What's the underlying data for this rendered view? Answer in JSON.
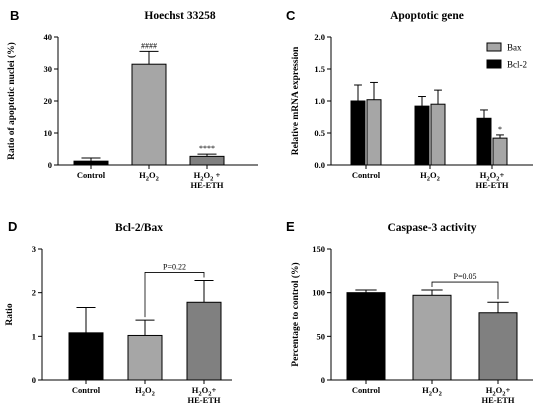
{
  "chart_data": [
    {
      "panel": "B",
      "type": "bar",
      "title": "Hoechst 33258",
      "ylabel": "Ratio of apoptotic nuclei (%)",
      "ylim": [
        0,
        40
      ],
      "yticks": [
        "0",
        "10",
        "20",
        "30",
        "40"
      ],
      "categories": [
        {
          "main": "Control",
          "sub": ""
        },
        {
          "main": "H2O2",
          "sub": ""
        },
        {
          "main": "H2O2 +",
          "sub": "HE-ETH"
        }
      ],
      "values": [
        1.2,
        31.5,
        2.7
      ],
      "errors": [
        1.0,
        4.0,
        0.7
      ],
      "colors": [
        "#000000",
        "#a6a6a6",
        "#808080"
      ],
      "significance": [
        "",
        "####",
        "****"
      ]
    },
    {
      "panel": "C",
      "type": "bar",
      "title": "Apoptotic gene",
      "ylabel": "Relative mRNA expression",
      "ylim": [
        0,
        2.0
      ],
      "yticks": [
        "0.0",
        "0.5",
        "1.0",
        "1.5",
        "2.0"
      ],
      "categories": [
        {
          "main": "Control",
          "sub": ""
        },
        {
          "main": "H2O2",
          "sub": ""
        },
        {
          "main": "H2O2+",
          "sub": "HE-ETH"
        }
      ],
      "series": [
        {
          "name": "Bcl-2",
          "color": "#000000",
          "values": [
            1.0,
            0.92,
            0.73
          ],
          "errors": [
            0.25,
            0.15,
            0.13
          ]
        },
        {
          "name": "Bax",
          "color": "#a6a6a6",
          "values": [
            1.02,
            0.95,
            0.42
          ],
          "errors": [
            0.27,
            0.22,
            0.05
          ]
        }
      ],
      "legend": [
        "Bax",
        "Bcl-2"
      ],
      "significance": [
        "",
        "",
        "*"
      ]
    },
    {
      "panel": "D",
      "type": "bar",
      "title": "Bcl-2/Bax",
      "ylabel": "Ratio",
      "ylim": [
        0,
        3
      ],
      "yticks": [
        "0",
        "1",
        "2",
        "3"
      ],
      "categories": [
        {
          "main": "Control",
          "sub": ""
        },
        {
          "main": "H2O2",
          "sub": ""
        },
        {
          "main": "H2O2+",
          "sub": "HE-ETH"
        }
      ],
      "values": [
        1.08,
        1.02,
        1.78
      ],
      "errors": [
        0.58,
        0.35,
        0.5
      ],
      "colors": [
        "#000000",
        "#a6a6a6",
        "#808080"
      ],
      "comparison": "P=0.22"
    },
    {
      "panel": "E",
      "type": "bar",
      "title": "Caspase-3 activity",
      "ylabel": "Percentage to control (%)",
      "ylim": [
        0,
        150
      ],
      "yticks": [
        "0",
        "50",
        "100",
        "150"
      ],
      "categories": [
        {
          "main": "Control",
          "sub": ""
        },
        {
          "main": "H2O2",
          "sub": ""
        },
        {
          "main": "H2O2+",
          "sub": "HE-ETH"
        }
      ],
      "values": [
        100,
        97,
        77
      ],
      "errors": [
        3,
        6,
        12
      ],
      "colors": [
        "#000000",
        "#a6a6a6",
        "#808080"
      ],
      "comparison": "P=0.05"
    }
  ]
}
